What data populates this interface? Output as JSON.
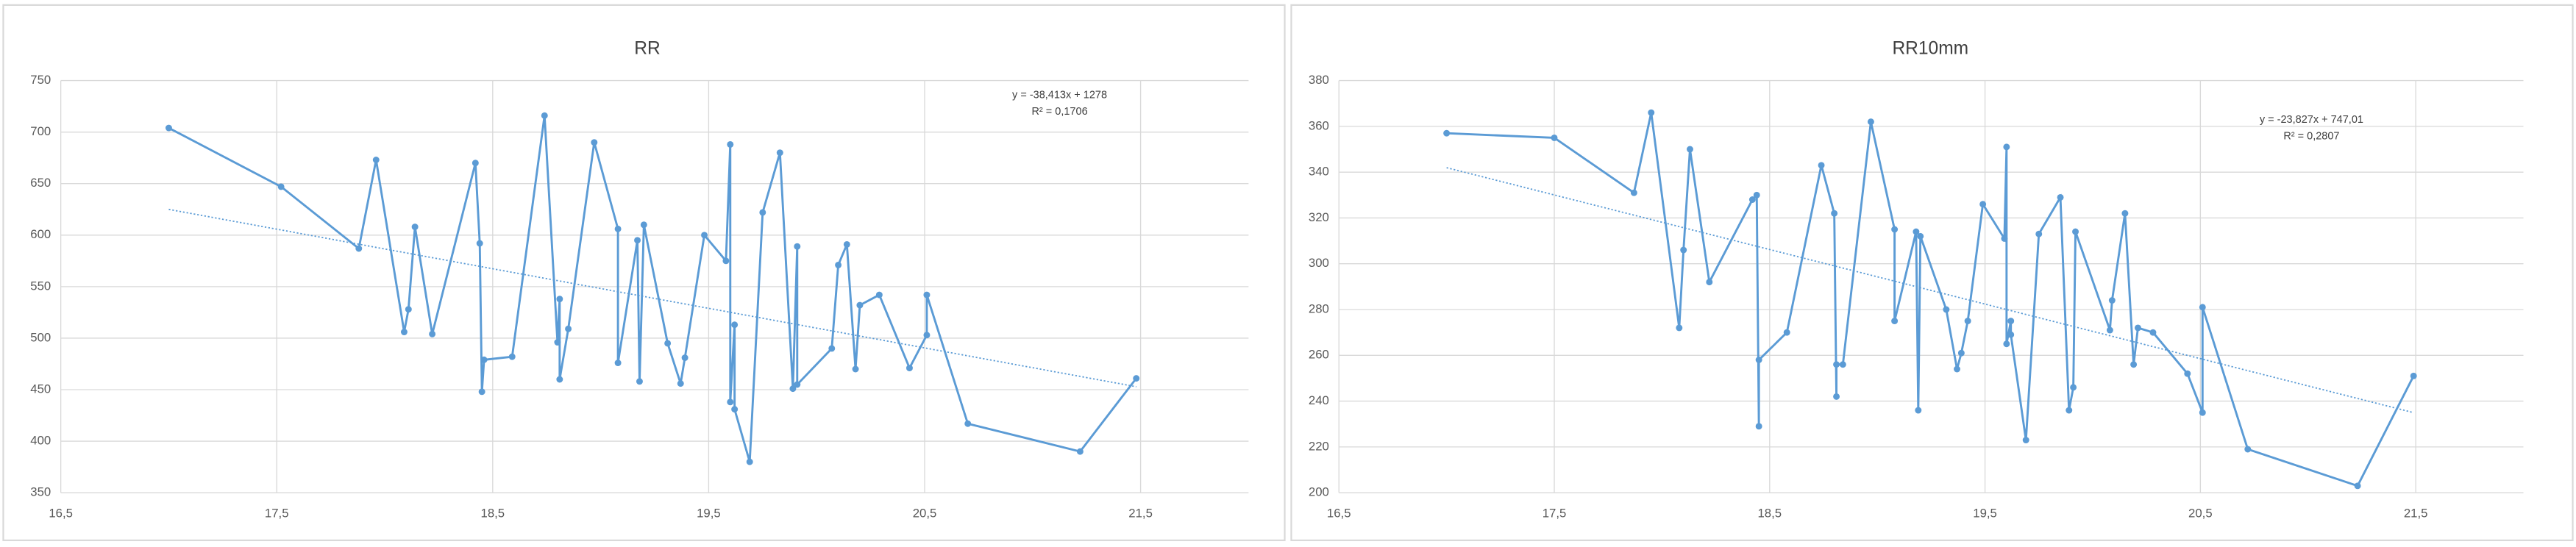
{
  "chart_data": [
    {
      "type": "scatter",
      "title": "RR",
      "connect": true,
      "color": "#5b9bd5",
      "grid": true,
      "x": [
        17.0,
        17.52,
        17.88,
        17.96,
        18.09,
        18.11,
        18.14,
        18.22,
        18.42,
        18.44,
        18.45,
        18.46,
        18.59,
        18.74,
        18.8,
        18.81,
        18.81,
        18.85,
        18.97,
        19.08,
        19.08,
        19.17,
        19.18,
        19.2,
        19.31,
        19.37,
        19.39,
        19.48,
        19.58,
        19.6,
        19.6,
        19.62,
        19.62,
        19.69,
        19.75,
        19.83,
        19.89,
        19.91,
        19.91,
        20.07,
        20.1,
        20.14,
        20.18,
        20.2,
        20.29,
        20.43,
        20.51,
        20.51,
        20.7,
        21.22,
        21.48
      ],
      "values": [
        704,
        647,
        587,
        673,
        506,
        528,
        608,
        504,
        670,
        592,
        448,
        479,
        482,
        716,
        496,
        538,
        460,
        509,
        690,
        606,
        476,
        595,
        458,
        610,
        495,
        456,
        481,
        600,
        575,
        688,
        438,
        513,
        431,
        380,
        622,
        680,
        451,
        589,
        455,
        490,
        571,
        591,
        470,
        532,
        542,
        471,
        503,
        542,
        417,
        390,
        461
      ],
      "xlim": [
        16.5,
        22
      ],
      "ylim": [
        350,
        750
      ],
      "xticks": [
        {
          "value": 16.5,
          "label": "16,5"
        },
        {
          "value": 17.5,
          "label": "17,5"
        },
        {
          "value": 18.5,
          "label": "18,5"
        },
        {
          "value": 19.5,
          "label": "19,5"
        },
        {
          "value": 20.5,
          "label": "20,5"
        },
        {
          "value": 21.5,
          "label": "21,5"
        }
      ],
      "yticks": [
        350,
        400,
        450,
        500,
        550,
        600,
        650,
        700,
        750
      ],
      "trendline": {
        "slope": -38.413,
        "intercept": 1278,
        "equation": "y = -38,413x + 1278",
        "r_squared": "R² = 0,1706"
      }
    },
    {
      "type": "scatter",
      "title": "RR10mm",
      "connect": true,
      "color": "#5b9bd5",
      "grid": true,
      "x": [
        17.0,
        17.5,
        17.87,
        17.95,
        18.08,
        18.1,
        18.13,
        18.22,
        18.42,
        18.44,
        18.45,
        18.45,
        18.58,
        18.74,
        18.8,
        18.81,
        18.81,
        18.84,
        18.97,
        19.08,
        19.08,
        19.18,
        19.19,
        19.2,
        19.32,
        19.37,
        19.39,
        19.42,
        19.49,
        19.59,
        19.6,
        19.6,
        19.62,
        19.62,
        19.69,
        19.75,
        19.85,
        19.89,
        19.91,
        19.92,
        20.08,
        20.09,
        20.15,
        20.19,
        20.21,
        20.28,
        20.44,
        20.51,
        20.51,
        20.72,
        21.23,
        21.49
      ],
      "values": [
        357,
        355,
        331,
        366,
        272,
        306,
        350,
        292,
        328,
        330,
        229,
        258,
        270,
        343,
        322,
        242,
        256,
        256,
        362,
        315,
        275,
        314,
        236,
        312,
        280,
        254,
        261,
        275,
        326,
        311,
        351,
        265,
        275,
        269,
        223,
        313,
        329,
        236,
        246,
        314,
        271,
        284,
        322,
        256,
        272,
        270,
        252,
        235,
        281,
        219,
        203,
        251
      ],
      "xlim": [
        16.5,
        22
      ],
      "ylim": [
        200,
        380
      ],
      "xticks": [
        {
          "value": 16.5,
          "label": "16,5"
        },
        {
          "value": 17.5,
          "label": "17,5"
        },
        {
          "value": 18.5,
          "label": "18,5"
        },
        {
          "value": 19.5,
          "label": "19,5"
        },
        {
          "value": 20.5,
          "label": "20,5"
        },
        {
          "value": 21.5,
          "label": "21,5"
        }
      ],
      "yticks": [
        200,
        220,
        240,
        260,
        280,
        300,
        320,
        340,
        360,
        380
      ],
      "trendline": {
        "slope": -23.827,
        "intercept": 747.01,
        "equation": "y = -23,827x + 747,01",
        "r_squared": "R² = 0,2807"
      }
    }
  ]
}
